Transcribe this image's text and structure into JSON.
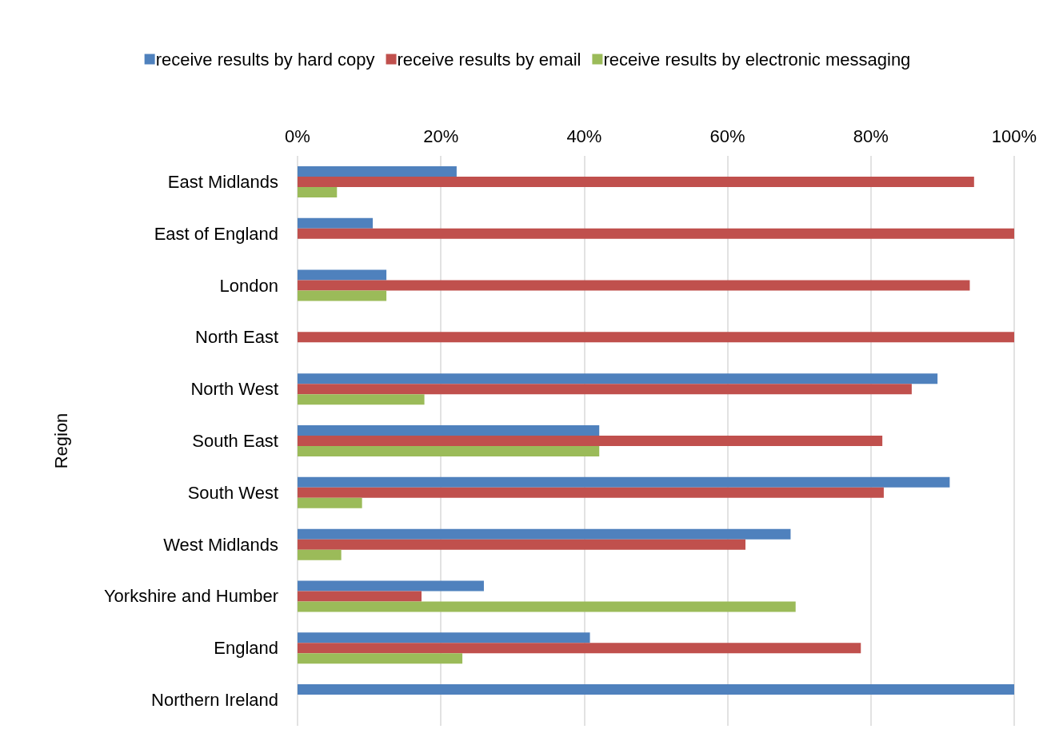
{
  "chart_data": {
    "type": "bar",
    "orientation": "horizontal",
    "ylabel": "Region",
    "categories": [
      "East Midlands",
      "East of England",
      "London",
      "North East",
      "North West",
      "South East",
      "South West",
      "West Midlands",
      "Yorkshire and Humber",
      "England",
      "Northern Ireland"
    ],
    "series": [
      {
        "name": "receive results by hard copy",
        "color": "#4f81bd",
        "values": [
          22.2,
          10.5,
          12.4,
          0,
          89.3,
          42.1,
          91.0,
          68.8,
          26.0,
          40.8,
          100
        ]
      },
      {
        "name": "receive results by email",
        "color": "#c0504d",
        "values": [
          94.4,
          100,
          93.8,
          100,
          85.7,
          81.6,
          81.8,
          62.5,
          17.3,
          78.6,
          0
        ]
      },
      {
        "name": "receive results by electronic messaging",
        "color": "#9bbb59",
        "values": [
          5.5,
          0,
          12.4,
          0,
          17.7,
          42.1,
          9.0,
          6.1,
          69.5,
          23.0,
          0
        ]
      }
    ],
    "xlim": [
      0,
      100
    ],
    "xticks": [
      {
        "value": 0,
        "label": "0%"
      },
      {
        "value": 20,
        "label": "20%"
      },
      {
        "value": 40,
        "label": "40%"
      },
      {
        "value": 60,
        "label": "60%"
      },
      {
        "value": 80,
        "label": "80%"
      },
      {
        "value": 100,
        "label": "100%"
      }
    ],
    "grid": "x",
    "legend": "top"
  }
}
